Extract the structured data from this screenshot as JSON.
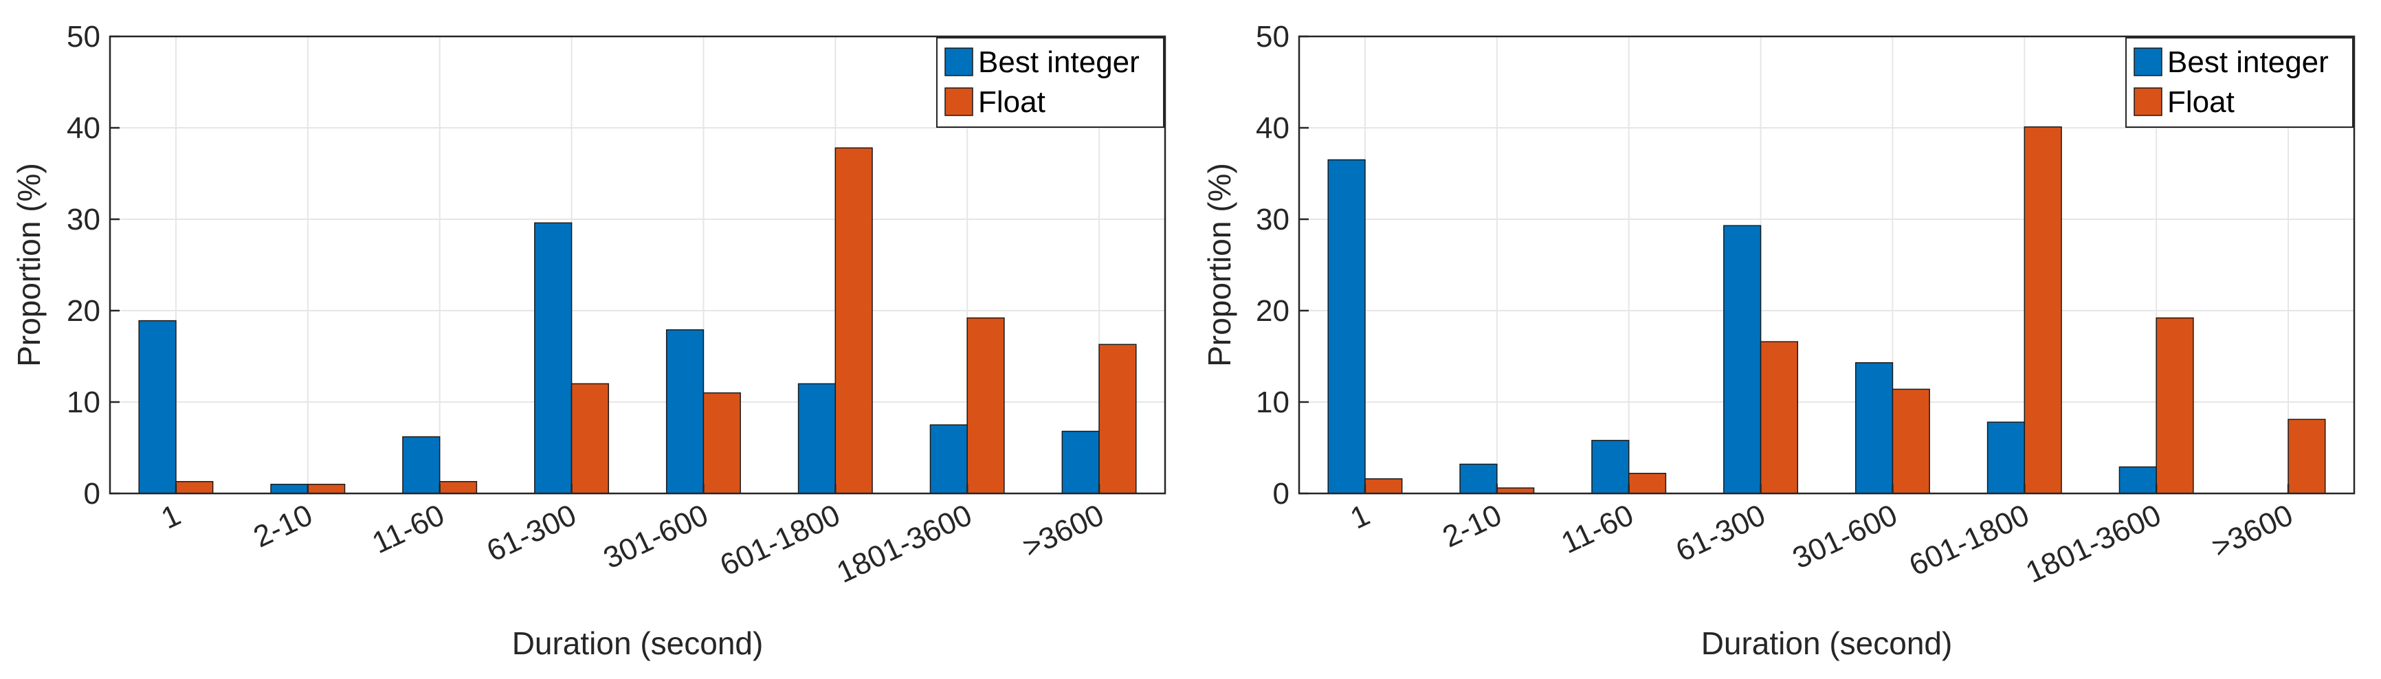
{
  "chart_data": [
    {
      "type": "bar",
      "categories": [
        "1",
        "2-10",
        "11-60",
        "61-300",
        "301-600",
        "601-1800",
        "1801-3600",
        ">3600"
      ],
      "series": [
        {
          "name": "Best integer",
          "color": "#0072BD",
          "values": [
            18.9,
            1.0,
            6.2,
            29.6,
            17.9,
            12.0,
            7.5,
            6.8
          ]
        },
        {
          "name": "Float",
          "color": "#D95319",
          "values": [
            1.3,
            1.0,
            1.3,
            12.0,
            11.0,
            37.8,
            19.2,
            16.3
          ]
        }
      ],
      "xlabel": "Duration (second)",
      "ylabel": "Proportion (%)",
      "ylim": [
        0,
        50
      ],
      "yticks": [
        "0",
        "10",
        "20",
        "30",
        "40",
        "50"
      ],
      "grid": true,
      "legend": "top-right"
    },
    {
      "type": "bar",
      "categories": [
        "1",
        "2-10",
        "11-60",
        "61-300",
        "301-600",
        "601-1800",
        "1801-3600",
        ">3600"
      ],
      "series": [
        {
          "name": "Best integer",
          "color": "#0072BD",
          "values": [
            36.5,
            3.2,
            5.8,
            29.3,
            14.3,
            7.8,
            2.9,
            0
          ]
        },
        {
          "name": "Float",
          "color": "#D95319",
          "values": [
            1.6,
            0.6,
            2.2,
            16.6,
            11.4,
            40.1,
            19.2,
            8.1
          ]
        }
      ],
      "xlabel": "Duration (second)",
      "ylabel": "Proportion (%)",
      "ylim": [
        0,
        50
      ],
      "yticks": [
        "0",
        "10",
        "20",
        "30",
        "40",
        "50"
      ],
      "grid": true,
      "legend": "top-right"
    }
  ]
}
